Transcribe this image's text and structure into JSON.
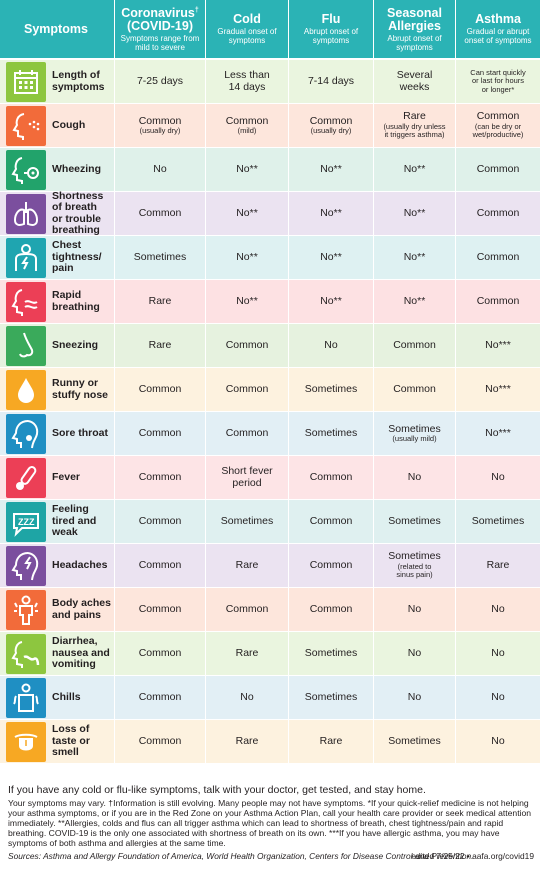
{
  "header": {
    "symptoms": "Symptoms",
    "columns": [
      {
        "title": "Coronavirus",
        "title2": "(COVID-19)",
        "mark": "†",
        "sub": "Symptoms range from mild to severe"
      },
      {
        "title": "Cold",
        "title2": "",
        "mark": "",
        "sub": "Gradual onset of symptoms"
      },
      {
        "title": "Flu",
        "title2": "",
        "mark": "",
        "sub": "Abrupt onset of symptoms"
      },
      {
        "title": "Seasonal",
        "title2": "Allergies",
        "mark": "",
        "sub": "Abrupt onset of symptoms"
      },
      {
        "title": "Asthma",
        "title2": "",
        "mark": "",
        "sub": "Gradual or abrupt onset of symptoms"
      }
    ]
  },
  "colors": {
    "header": "#2bb3b5",
    "rows": [
      "#eaf5df",
      "#fde6dc",
      "#dff1ea",
      "#ebe3f1",
      "#def1f2",
      "#fde1e3",
      "#e6f2df",
      "#fdf2df",
      "#e2eff5",
      "#fde4e6",
      "#dff0f0",
      "#ebe3f1",
      "#fde6dc",
      "#eaf5df",
      "#e2eff5",
      "#fdf2df"
    ],
    "icons": [
      "#8dc63f",
      "#f26b3a",
      "#22a36b",
      "#7b4f9e",
      "#1fa5b0",
      "#ec3f56",
      "#3aaa5b",
      "#f7a823",
      "#1f8fc3",
      "#ec3f56",
      "#1ea5a5",
      "#7b4f9e",
      "#f26b3a",
      "#8dc63f",
      "#1f8fc3",
      "#f7a823"
    ]
  },
  "rows": [
    {
      "icon": "calendar-icon",
      "label": "Length of\nsymptoms",
      "cells": [
        {
          "main": "7-25 days",
          "note": ""
        },
        {
          "main": "Less than\n14 days",
          "note": ""
        },
        {
          "main": "7-14 days",
          "note": ""
        },
        {
          "main": "Several\nweeks",
          "note": ""
        },
        {
          "main": "",
          "note": "Can start quickly\nor last for hours\nor longer*"
        }
      ]
    },
    {
      "icon": "cough-icon",
      "label": "Cough",
      "cells": [
        {
          "main": "Common",
          "note": "(usually dry)"
        },
        {
          "main": "Common",
          "note": "(mild)"
        },
        {
          "main": "Common",
          "note": "(usually dry)"
        },
        {
          "main": "Rare",
          "note": "(usually dry unless\nit triggers asthma)"
        },
        {
          "main": "Common",
          "note": "(can be dry or\nwet/productive)"
        }
      ]
    },
    {
      "icon": "wheezing-icon",
      "label": "Wheezing",
      "cells": [
        {
          "main": "No",
          "note": ""
        },
        {
          "main": "No**",
          "note": ""
        },
        {
          "main": "No**",
          "note": ""
        },
        {
          "main": "No**",
          "note": ""
        },
        {
          "main": "Common",
          "note": ""
        }
      ]
    },
    {
      "icon": "lungs-icon",
      "label": "Shortness\nof breath\nor trouble\nbreathing",
      "cells": [
        {
          "main": "Common",
          "note": ""
        },
        {
          "main": "No**",
          "note": ""
        },
        {
          "main": "No**",
          "note": ""
        },
        {
          "main": "No**",
          "note": ""
        },
        {
          "main": "Common",
          "note": ""
        }
      ]
    },
    {
      "icon": "chest-icon",
      "label": "Chest\ntightness/\npain",
      "cells": [
        {
          "main": "Sometimes",
          "note": ""
        },
        {
          "main": "No**",
          "note": ""
        },
        {
          "main": "No**",
          "note": ""
        },
        {
          "main": "No**",
          "note": ""
        },
        {
          "main": "Common",
          "note": ""
        }
      ]
    },
    {
      "icon": "rapid-breathing-icon",
      "label": "Rapid\nbreathing",
      "cells": [
        {
          "main": "Rare",
          "note": ""
        },
        {
          "main": "No**",
          "note": ""
        },
        {
          "main": "No**",
          "note": ""
        },
        {
          "main": "No**",
          "note": ""
        },
        {
          "main": "Common",
          "note": ""
        }
      ]
    },
    {
      "icon": "nose-icon",
      "label": "Sneezing",
      "cells": [
        {
          "main": "Rare",
          "note": ""
        },
        {
          "main": "Common",
          "note": ""
        },
        {
          "main": "No",
          "note": ""
        },
        {
          "main": "Common",
          "note": ""
        },
        {
          "main": "No***",
          "note": ""
        }
      ]
    },
    {
      "icon": "droplet-icon",
      "label": "Runny or\nstuffy nose",
      "cells": [
        {
          "main": "Common",
          "note": ""
        },
        {
          "main": "Common",
          "note": ""
        },
        {
          "main": "Sometimes",
          "note": ""
        },
        {
          "main": "Common",
          "note": ""
        },
        {
          "main": "No***",
          "note": ""
        }
      ]
    },
    {
      "icon": "throat-icon",
      "label": "Sore throat",
      "cells": [
        {
          "main": "Common",
          "note": ""
        },
        {
          "main": "Common",
          "note": ""
        },
        {
          "main": "Sometimes",
          "note": ""
        },
        {
          "main": "Sometimes",
          "note": "(usually mild)"
        },
        {
          "main": "No***",
          "note": ""
        }
      ]
    },
    {
      "icon": "thermometer-icon",
      "label": "Fever",
      "cells": [
        {
          "main": "Common",
          "note": ""
        },
        {
          "main": "Short fever\nperiod",
          "note": ""
        },
        {
          "main": "Common",
          "note": ""
        },
        {
          "main": "No",
          "note": ""
        },
        {
          "main": "No",
          "note": ""
        }
      ]
    },
    {
      "icon": "sleep-icon",
      "label": "Feeling\ntired and\nweak",
      "cells": [
        {
          "main": "Common",
          "note": ""
        },
        {
          "main": "Sometimes",
          "note": ""
        },
        {
          "main": "Common",
          "note": ""
        },
        {
          "main": "Sometimes",
          "note": ""
        },
        {
          "main": "Sometimes",
          "note": ""
        }
      ]
    },
    {
      "icon": "headache-icon",
      "label": "Headaches",
      "cells": [
        {
          "main": "Common",
          "note": ""
        },
        {
          "main": "Rare",
          "note": ""
        },
        {
          "main": "Common",
          "note": ""
        },
        {
          "main": "Sometimes",
          "note": "(related to\nsinus pain)"
        },
        {
          "main": "Rare",
          "note": ""
        }
      ]
    },
    {
      "icon": "body-aches-icon",
      "label": "Body aches\nand pains",
      "cells": [
        {
          "main": "Common",
          "note": ""
        },
        {
          "main": "Common",
          "note": ""
        },
        {
          "main": "Common",
          "note": ""
        },
        {
          "main": "No",
          "note": ""
        },
        {
          "main": "No",
          "note": ""
        }
      ]
    },
    {
      "icon": "nausea-icon",
      "label": "Diarrhea,\nnausea and\nvomiting",
      "cells": [
        {
          "main": "Common",
          "note": ""
        },
        {
          "main": "Rare",
          "note": ""
        },
        {
          "main": "Sometimes",
          "note": ""
        },
        {
          "main": "No",
          "note": ""
        },
        {
          "main": "No",
          "note": ""
        }
      ]
    },
    {
      "icon": "chills-icon",
      "label": "Chills",
      "cells": [
        {
          "main": "Common",
          "note": ""
        },
        {
          "main": "No",
          "note": ""
        },
        {
          "main": "Sometimes",
          "note": ""
        },
        {
          "main": "No",
          "note": ""
        },
        {
          "main": "No",
          "note": ""
        }
      ]
    },
    {
      "icon": "tongue-icon",
      "label": "Loss of\ntaste or\nsmell",
      "cells": [
        {
          "main": "Common",
          "note": ""
        },
        {
          "main": "Rare",
          "note": ""
        },
        {
          "main": "Rare",
          "note": ""
        },
        {
          "main": "Sometimes",
          "note": ""
        },
        {
          "main": "No",
          "note": ""
        }
      ]
    }
  ],
  "footer": {
    "main": "If you have any cold or flu-like symptoms, talk with your doctor, get tested, and stay home.",
    "notes": "Your symptoms may vary. †Information is still evolving. Many people may not have symptoms. *If your quick-relief medicine is not helping your asthma symptoms, or if you are in the Red Zone on your Asthma Action Plan, call your health care provider or seek medical attention immediately. **Allergies, colds and flus can all trigger asthma which can lead to shortness of breath, chest tightness/pain and rapid breathing. COVID-19 is the only one associated with shortness of breath on its own. ***If you have allergic asthma, you may have symptoms of both asthma and allergies at the same time.",
    "sources": "Sources: Asthma and Allergy Foundation of America, World Health Organization, Centers for Disease Control and Prevention.",
    "edited": "edited 7/25/22 • aafa.org/covid19"
  }
}
